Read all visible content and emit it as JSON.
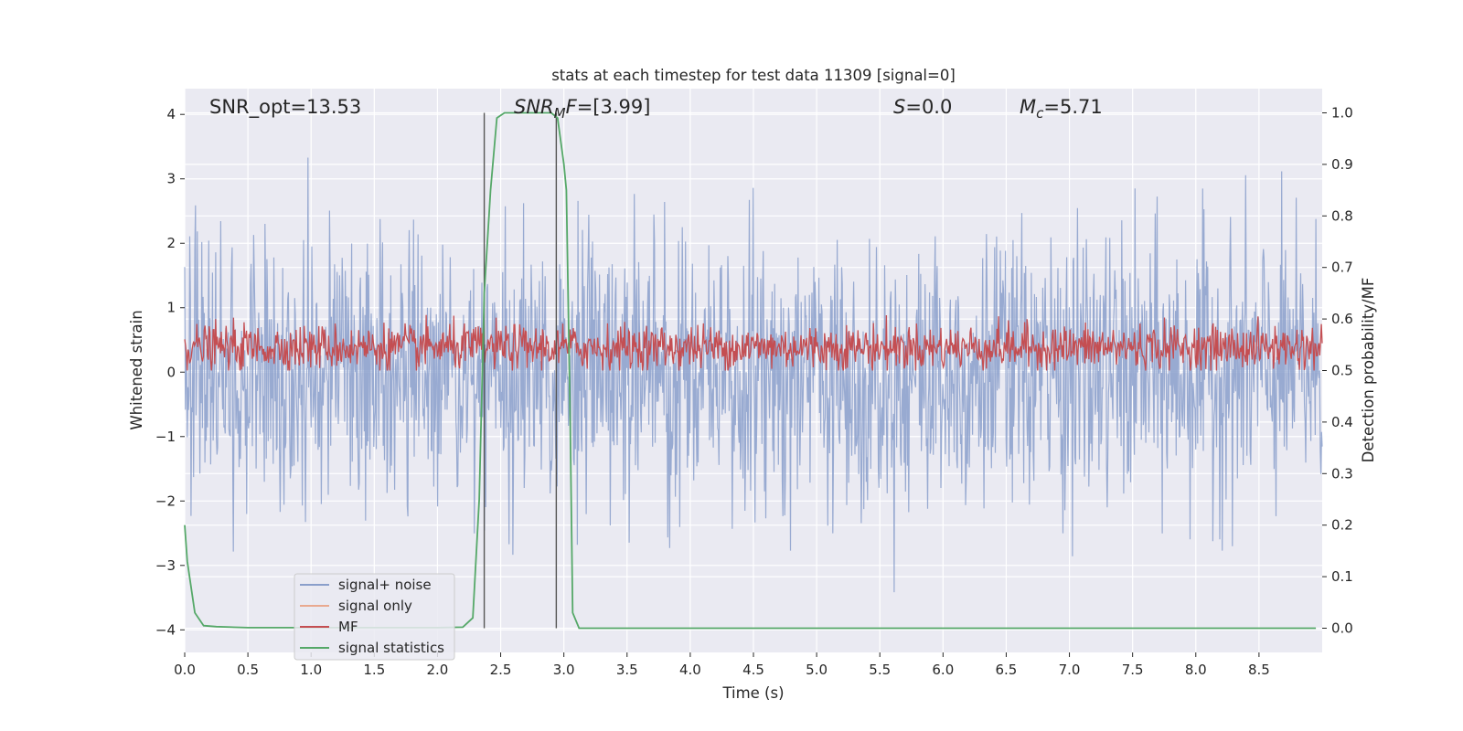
{
  "chart_data": {
    "type": "line",
    "title": "stats at each timestep for test data 11309 [signal=0]",
    "xlabel": "Time (s)",
    "ylabel": "Whitened strain",
    "ylabel_right": "Detection probability/MF",
    "xlim": [
      0.0,
      9.0
    ],
    "ylim": [
      -4.35,
      4.4
    ],
    "ylim_right": [
      -0.047,
      1.047
    ],
    "x_ticks": [
      "0.0",
      "0.5",
      "1.0",
      "1.5",
      "2.0",
      "2.5",
      "3.0",
      "3.5",
      "4.0",
      "4.5",
      "5.0",
      "5.5",
      "6.0",
      "6.5",
      "7.0",
      "7.5",
      "8.0",
      "8.5"
    ],
    "y_ticks": [
      "−4",
      "−3",
      "−2",
      "−1",
      "0",
      "1",
      "2",
      "3",
      "4"
    ],
    "y_right_ticks": [
      "0.0",
      "0.1",
      "0.2",
      "0.3",
      "0.4",
      "0.5",
      "0.6",
      "0.7",
      "0.8",
      "0.9",
      "1.0"
    ],
    "grid": true,
    "annotations": {
      "snr_opt": "SNR_opt=13.53",
      "snr_mf_italic": "SNR",
      "snr_mf_sub": "M",
      "snr_mf_italic2": "F",
      "snr_mf_value": "=[3.99]",
      "s_italic": "S",
      "s_value": "=0.0",
      "mc_italic": "M",
      "mc_sub": "c",
      "mc_value": "=5.71"
    },
    "vertical_markers": [
      2.37,
      2.94
    ],
    "series": [
      {
        "name": "signal+ noise",
        "color": "#8a9fcb",
        "axis": "left",
        "description": "whitened strain, approx. zero-mean noise with std ~1 and extremes near ±3.5",
        "envelope": [
          -4.0,
          4.0
        ]
      },
      {
        "name": "signal only",
        "color": "#e9a98f",
        "axis": "left",
        "values": []
      },
      {
        "name": "MF",
        "color": "#c44e52",
        "axis": "right",
        "description": "matched-filter output fluctuating between about 0.5 and 0.6",
        "range": [
          0.5,
          0.62
        ]
      },
      {
        "name": "signal statistics",
        "color": "#55a868",
        "axis": "right",
        "x": [
          0.0,
          0.02,
          0.08,
          0.15,
          0.25,
          0.5,
          1.0,
          1.5,
          2.0,
          2.2,
          2.28,
          2.33,
          2.37,
          2.42,
          2.47,
          2.53,
          2.6,
          2.7,
          2.8,
          2.9,
          2.95,
          3.0,
          3.02,
          3.05,
          3.07,
          3.12,
          3.5,
          4.0,
          5.0,
          6.0,
          7.0,
          8.0,
          8.95
        ],
        "values": [
          0.2,
          0.13,
          0.03,
          0.005,
          0.003,
          0.001,
          0.001,
          0.001,
          0.001,
          0.002,
          0.02,
          0.25,
          0.65,
          0.85,
          0.99,
          1.0,
          1.0,
          1.0,
          1.0,
          1.0,
          0.99,
          0.9,
          0.85,
          0.4,
          0.03,
          0.0,
          0.0,
          0.0,
          0.0,
          0.0,
          0.0,
          0.0,
          0.0
        ]
      }
    ],
    "legend": {
      "placement": "lower-left",
      "entries": [
        {
          "label": "signal+ noise",
          "color": "#8a9fcb"
        },
        {
          "label": "signal only",
          "color": "#e9a98f"
        },
        {
          "label": "MF",
          "color": "#c44e52"
        },
        {
          "label": "signal statistics",
          "color": "#55a868"
        }
      ]
    }
  }
}
